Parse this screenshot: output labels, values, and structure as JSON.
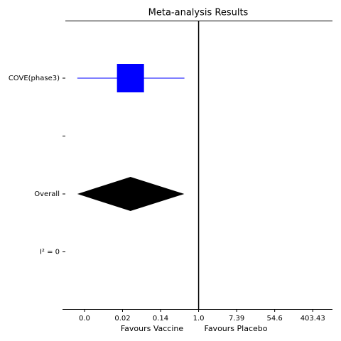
{
  "chart_data": {
    "type": "forest",
    "title": "Meta-analysis Results",
    "xlabels": [
      "Favours Vaccine",
      "Favours Placebo"
    ],
    "categories": [
      "COVE(phase3)",
      null,
      "Overall",
      "I² = 0"
    ],
    "estimates": [
      0.0278,
      null,
      0.0278,
      null
    ],
    "ci_low": [
      0.0017,
      null,
      0.0017,
      null
    ],
    "ci_high": [
      0.474,
      null,
      0.47,
      null
    ],
    "colors": [
      "blue",
      null,
      "black",
      null
    ],
    "reference_line": 1,
    "xscale": "log",
    "xlim": [
      0.00078,
      1140
    ],
    "xticks": [
      {
        "value": 0.00248,
        "label": "0.0"
      },
      {
        "value": 0.0183,
        "label": "0.02"
      },
      {
        "value": 0.1353,
        "label": "0.14"
      },
      {
        "value": 1,
        "label": "1.0"
      },
      {
        "value": 7.389,
        "label": "7.39"
      },
      {
        "value": 54.598,
        "label": "54.6"
      },
      {
        "value": 403.429,
        "label": "403.43"
      }
    ]
  }
}
